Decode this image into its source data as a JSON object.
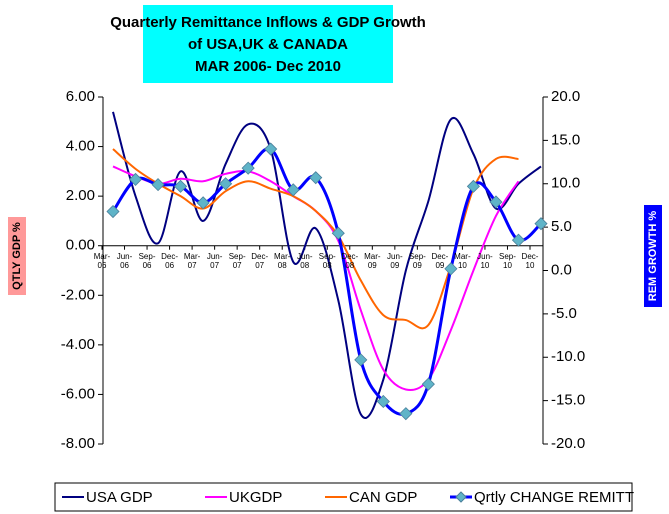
{
  "chart_data": {
    "type": "line",
    "title": [
      "Quarterly Remittance Inflows & GDP Growth",
      "of USA,UK & CANADA",
      "MAR 2006- Dec 2010"
    ],
    "ylabel": "QTLY GDP %",
    "y2label": "REM GROWTH %",
    "categories": [
      "Mar-06",
      "Jun-06",
      "Sep-06",
      "Dec-06",
      "Mar-07",
      "Jun-07",
      "Sep-07",
      "Dec-07",
      "Mar-08",
      "Jun-08",
      "Sep-08",
      "Dec-08",
      "Mar-09",
      "Jun-09",
      "Sep-09",
      "Dec-09",
      "Mar-10",
      "Jun-10",
      "Sep-10",
      "Dec-10"
    ],
    "ylim": [
      -8,
      6
    ],
    "yticks": [
      {
        "value": 6,
        "label": "6.00"
      },
      {
        "value": 4,
        "label": "4.00"
      },
      {
        "value": 2,
        "label": "2.00"
      },
      {
        "value": 0,
        "label": "0.00"
      },
      {
        "value": -2,
        "label": "-2.00"
      },
      {
        "value": -4,
        "label": "-4.00"
      },
      {
        "value": -6,
        "label": "-6.00"
      },
      {
        "value": -8,
        "label": "-8.00"
      }
    ],
    "y2lim": [
      -20,
      20
    ],
    "y2ticks": [
      {
        "value": 20,
        "label": "20.0"
      },
      {
        "value": 15,
        "label": "15.0"
      },
      {
        "value": 10,
        "label": "10.0"
      },
      {
        "value": 5,
        "label": "5.0"
      },
      {
        "value": 0,
        "label": "0.0"
      },
      {
        "value": -5,
        "label": "-5.0"
      },
      {
        "value": -10,
        "label": "-10.0"
      },
      {
        "value": -15,
        "label": "-15.0"
      },
      {
        "value": -20,
        "label": "-20.0"
      }
    ],
    "smooth": true,
    "legend": "bottom",
    "series": [
      {
        "name": "USA GDP",
        "color": "#000080",
        "values": [
          5.4,
          2.0,
          0.1,
          3.0,
          1.0,
          3.3,
          4.9,
          3.9,
          -0.65,
          0.7,
          -2.2,
          -6.8,
          -5.4,
          -1.0,
          1.8,
          5.1,
          3.7,
          1.5,
          2.5,
          3.2
        ]
      },
      {
        "name": "UKGDP",
        "color": "#ff00ff",
        "values": [
          3.2,
          2.8,
          2.5,
          2.7,
          2.6,
          2.9,
          3.0,
          2.6,
          2.0,
          1.4,
          0.2,
          -2.6,
          -5.0,
          -5.8,
          -5.4,
          -3.4,
          -1.0,
          1.2,
          2.6,
          null
        ]
      },
      {
        "name": "CAN GDP",
        "color": "#ff6600",
        "values": [
          3.9,
          3.1,
          2.5,
          2.0,
          1.5,
          2.2,
          2.6,
          2.3,
          2.0,
          1.4,
          0.4,
          -1.4,
          -2.8,
          -3.0,
          -3.2,
          -0.8,
          2.3,
          3.5,
          3.5,
          null
        ]
      },
      {
        "name": "Qrtly CHANGE REMITT",
        "color": "#0000ff",
        "axis": "y2",
        "marker": "diamond",
        "marker_color": "#5fb4c8",
        "values": [
          6.8,
          10.5,
          9.9,
          9.7,
          7.8,
          10.0,
          11.8,
          14.0,
          9.3,
          10.7,
          4.3,
          -10.3,
          -15.1,
          -16.5,
          -13.1,
          0.2,
          9.7,
          7.9,
          3.5,
          5.4
        ]
      }
    ]
  }
}
